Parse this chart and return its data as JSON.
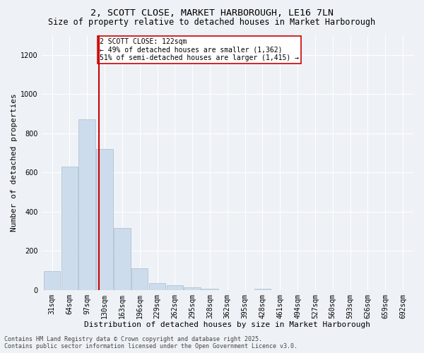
{
  "title_line1": "2, SCOTT CLOSE, MARKET HARBOROUGH, LE16 7LN",
  "title_line2": "Size of property relative to detached houses in Market Harborough",
  "xlabel": "Distribution of detached houses by size in Market Harborough",
  "ylabel": "Number of detached properties",
  "bar_color": "#ccdcec",
  "bar_edge_color": "#aabccc",
  "categories": [
    "31sqm",
    "64sqm",
    "97sqm",
    "130sqm",
    "163sqm",
    "196sqm",
    "229sqm",
    "262sqm",
    "295sqm",
    "328sqm",
    "362sqm",
    "395sqm",
    "428sqm",
    "461sqm",
    "494sqm",
    "527sqm",
    "560sqm",
    "593sqm",
    "626sqm",
    "659sqm",
    "692sqm"
  ],
  "values": [
    95,
    630,
    870,
    720,
    315,
    110,
    35,
    25,
    12,
    5,
    0,
    0,
    8,
    0,
    0,
    0,
    0,
    0,
    0,
    0,
    0
  ],
  "ylim": [
    0,
    1300
  ],
  "yticks": [
    0,
    200,
    400,
    600,
    800,
    1000,
    1200
  ],
  "annotation_text": "2 SCOTT CLOSE: 122sqm\n← 49% of detached houses are smaller (1,362)\n51% of semi-detached houses are larger (1,415) →",
  "annotation_box_color": "#ffffff",
  "annotation_box_edge_color": "#cc0000",
  "vline_color": "#cc0000",
  "vline_x_bin": 2.67,
  "footer_line1": "Contains HM Land Registry data © Crown copyright and database right 2025.",
  "footer_line2": "Contains public sector information licensed under the Open Government Licence v3.0.",
  "background_color": "#eef2f6",
  "grid_color": "#ffffff",
  "title_fontsize": 9.5,
  "subtitle_fontsize": 8.5,
  "axis_label_fontsize": 8,
  "tick_fontsize": 7,
  "annotation_fontsize": 7,
  "footer_fontsize": 6
}
